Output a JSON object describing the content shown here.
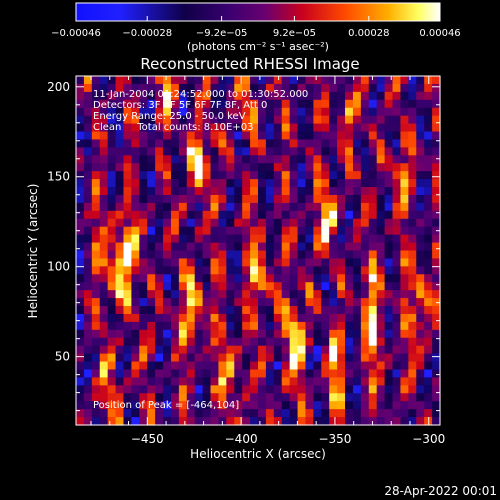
{
  "chart_data": {
    "type": "heatmap",
    "title": "Reconstructed RHESSI Image",
    "xlabel": "Heliocentric X (arcsec)",
    "ylabel": "Heliocentric Y (arcsec)",
    "xlim": [
      -488,
      -294
    ],
    "ylim": [
      12,
      206
    ],
    "xticks": [
      -450,
      -400,
      -350,
      -300
    ],
    "xtick_labels": [
      "−450",
      "−400",
      "−350",
      "−300"
    ],
    "yticks": [
      50,
      100,
      150,
      200
    ],
    "ytick_labels": [
      "50",
      "100",
      "150",
      "200"
    ],
    "colorbar": {
      "min": -0.00046,
      "max": 0.00046,
      "ticks": [
        -0.00046,
        -0.00028,
        -9.2e-05,
        9.2e-05,
        0.00028,
        0.00046
      ],
      "tick_labels": [
        "−0.00046",
        "−0.00028",
        "−9.2e−05",
        "9.2e−05",
        "0.00028",
        "0.00046"
      ],
      "units_label": "(photons cm⁻² s⁻¹ asec⁻²)"
    },
    "info_lines": [
      "11-Jan-2004 01:24:52.000 to 01:30:52.000",
      "Detectors: 3F 4F 5F 6F 7F 8F, Att 0",
      "Energy Range: 25.0 - 50.0 keV",
      "Clean     Total counts: 8.10E+03"
    ],
    "peak_label": "Position of Peak = [-464,104]",
    "peak_position": [
      -464,
      104
    ]
  },
  "footer_date": "28-Apr-2022 00:01",
  "colors": {
    "background": "#000000",
    "foreground": "#ffffff",
    "colormap": [
      "#0000ff",
      "#000000",
      "#5a00a0",
      "#b0002a",
      "#ff3a00",
      "#ffb000",
      "#ffff80",
      "#ffffff"
    ]
  }
}
